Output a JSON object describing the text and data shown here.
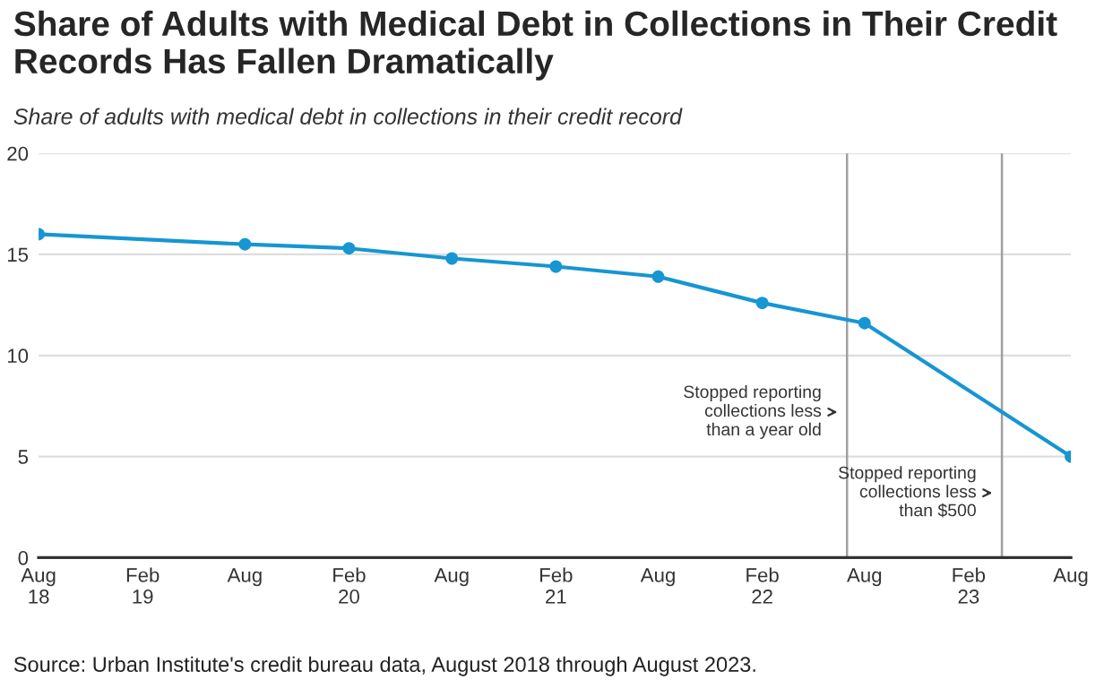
{
  "chart_data": {
    "type": "line",
    "title": "Share of Adults with Medical Debt in Collections in Their Credit Records Has Fallen Dramatically",
    "subtitle": "Share of adults with medical debt in collections in their credit record",
    "x": [
      "2018-08",
      "2019-08",
      "2020-02",
      "2020-08",
      "2021-02",
      "2021-08",
      "2022-02",
      "2022-08",
      "2023-08"
    ],
    "series": [
      {
        "color": "#1696d2",
        "values": [
          16.0,
          15.5,
          15.3,
          14.8,
          14.4,
          13.9,
          12.6,
          11.6,
          5.0
        ]
      }
    ],
    "xlim": [
      "2018-08",
      "2023-08"
    ],
    "xticks": [
      {
        "value": "2018-08",
        "label": "Aug\n18"
      },
      {
        "value": "2019-02",
        "label": "Feb\n19"
      },
      {
        "value": "2019-08",
        "label": "Aug"
      },
      {
        "value": "2020-02",
        "label": "Feb\n20"
      },
      {
        "value": "2020-08",
        "label": "Aug"
      },
      {
        "value": "2021-02",
        "label": "Feb\n21"
      },
      {
        "value": "2021-08",
        "label": "Aug"
      },
      {
        "value": "2022-02",
        "label": "Feb\n22"
      },
      {
        "value": "2022-08",
        "label": "Aug"
      },
      {
        "value": "2023-02",
        "label": "Feb\n23"
      },
      {
        "value": "2023-08",
        "label": "Aug"
      }
    ],
    "ylim": [
      0,
      20
    ],
    "yticks": [
      0,
      5,
      10,
      15,
      20
    ],
    "grid": "y",
    "marker": "circle",
    "line_style": "solid",
    "ref_lines": [
      {
        "axis": "x",
        "value": "2022-07",
        "label": "Stopped reporting\ncollections less\nthan a year old",
        "color": "#a0a0a0"
      },
      {
        "axis": "x",
        "value": "2023-04",
        "label": "Stopped reporting\ncollections less\nthan $500",
        "color": "#a0a0a0"
      }
    ],
    "annotations": [
      "Source: Urban Institute's credit bureau data, August 2018 through August 2023."
    ]
  }
}
